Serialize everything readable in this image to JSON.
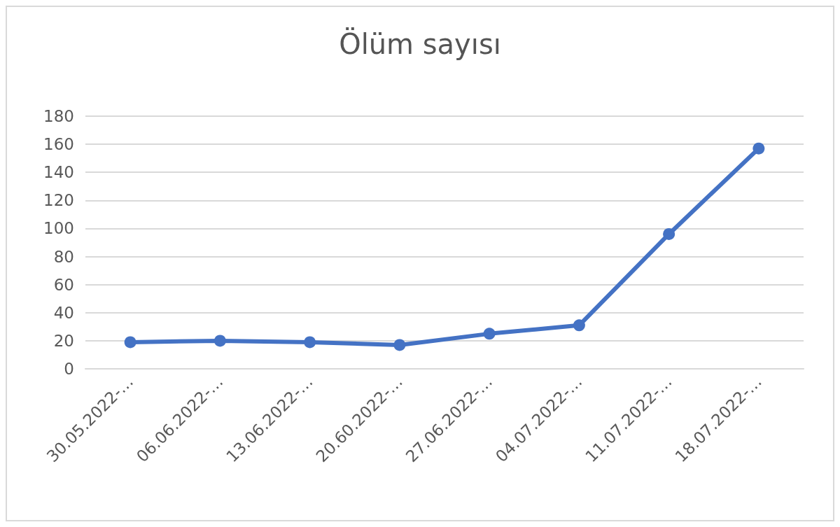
{
  "chart_data": {
    "type": "line",
    "title": "Ölüm sayısı",
    "categories": [
      "30.05.2022-…",
      "06.06.2022-…",
      "13.06.2022-…",
      "20.60.2022-…",
      "27.06.2022-…",
      "04.07.2022-…",
      "11.07.2022-…",
      "18.07.2022-…"
    ],
    "series": [
      {
        "color": "#4472c4",
        "values": [
          19,
          20,
          19,
          17,
          25,
          31,
          96,
          157
        ]
      }
    ],
    "ylim": [
      0,
      180
    ],
    "yticks": [
      0,
      20,
      40,
      60,
      80,
      100,
      120,
      140,
      160,
      180
    ],
    "grid": "y",
    "marker": "circle",
    "line_style": "solid"
  }
}
